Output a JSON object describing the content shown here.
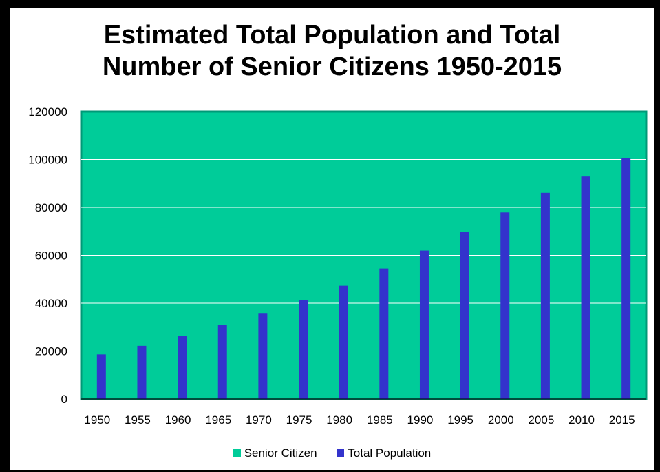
{
  "chart_data": {
    "type": "bar",
    "title_lines": [
      "Estimated Total Population and Total",
      "Number of Senior Citizens 1950-2015"
    ],
    "xlabel": "",
    "ylabel": "",
    "categories": [
      "1950",
      "1955",
      "1960",
      "1965",
      "1970",
      "1975",
      "1980",
      "1985",
      "1990",
      "1995",
      "2000",
      "2005",
      "2010",
      "2015"
    ],
    "series": [
      {
        "name": "Senior Citizen",
        "color": "#00cc99",
        "values": [
          0,
          0,
          0,
          0,
          0,
          0,
          0,
          0,
          0,
          0,
          0,
          0,
          0,
          0
        ]
      },
      {
        "name": "Total Population",
        "color": "#3333cc",
        "values": [
          18600,
          22200,
          26300,
          31000,
          35900,
          41300,
          47300,
          54500,
          62000,
          69900,
          77900,
          86100,
          92900,
          100700
        ]
      }
    ],
    "ylim": [
      0,
      120000
    ],
    "yticks": [
      0,
      20000,
      40000,
      60000,
      80000,
      100000,
      120000
    ],
    "grid": true,
    "plot_background": "#00cc99",
    "legend_position": "bottom"
  }
}
